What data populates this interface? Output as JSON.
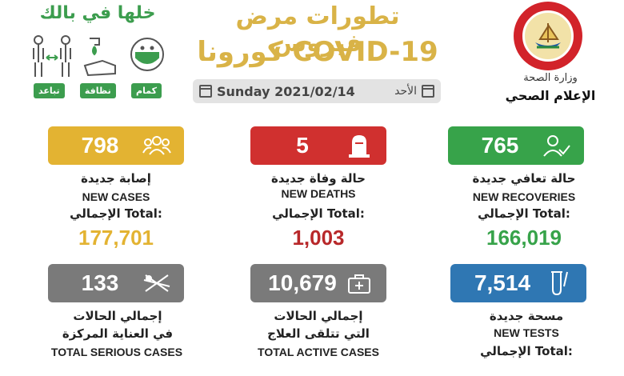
{
  "header": {
    "title_ar": "تطورات مرض فيروس",
    "title_en": "كورونا COVID-19",
    "date_en": "Sunday 2021/02/14",
    "day_ar": "الأحد"
  },
  "ministry": {
    "name_ar": "وزارة الصحة",
    "dept_ar": "الإعلام الصحي"
  },
  "precautions": {
    "slogan_ar": "خلها في بالك",
    "tags": [
      "تباعد",
      "نظافة",
      "كمام"
    ]
  },
  "cards": {
    "new_cases": {
      "value": "798",
      "label_ar": "إصابة جديدة",
      "label_en": "NEW CASES",
      "total_label": "الإجمالي Total:",
      "total": "177,701",
      "color": "#e3b332",
      "total_color": "#e3b332",
      "icon": "people-icon"
    },
    "new_deaths": {
      "value": "5",
      "label_ar": "حالة وفاة جديدة",
      "label_en": "NEW DEATHS",
      "total_label": "الإجمالي Total:",
      "total": "1,003",
      "color": "#d0302f",
      "total_color": "#b8282a",
      "icon": "tombstone-icon"
    },
    "new_recoveries": {
      "value": "765",
      "label_ar": "حالة تعافي جديدة",
      "label_en": "NEW RECOVERIES",
      "total_label": "الإجمالي Total:",
      "total": "166,019",
      "color": "#37a34a",
      "total_color": "#37a34a",
      "icon": "user-check-icon"
    },
    "serious": {
      "value": "133",
      "label_ar_1": "إجمالي الحالات",
      "label_ar_2": "في العناية المركزة",
      "label_en": "TOTAL SERIOUS CASES",
      "color": "#7a7a7a",
      "icon": "hospital-bed-icon"
    },
    "active": {
      "value": "10,679",
      "label_ar_1": "إجمالي الحالات",
      "label_ar_2": "التي تتلقى العلاج",
      "label_en": "TOTAL ACTIVE CASES",
      "color": "#7a7a7a",
      "icon": "medical-kit-icon"
    },
    "tests": {
      "value": "7,514",
      "label_ar": "مسحة جديدة",
      "label_en": "NEW TESTS",
      "total_label": "الإجمالي Total:",
      "color": "#2f77b3",
      "icon": "test-tube-icon"
    }
  }
}
